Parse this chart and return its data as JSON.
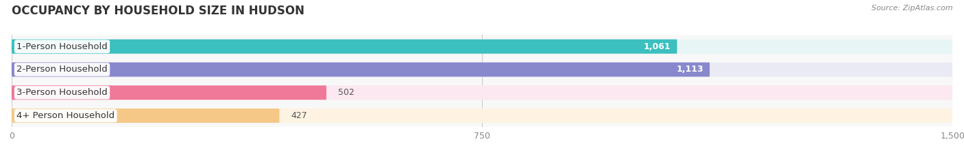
{
  "title": "OCCUPANCY BY HOUSEHOLD SIZE IN HUDSON",
  "source": "Source: ZipAtlas.com",
  "categories": [
    "1-Person Household",
    "2-Person Household",
    "3-Person Household",
    "4+ Person Household"
  ],
  "values": [
    1061,
    1113,
    502,
    427
  ],
  "bar_colors": [
    "#3bbfbf",
    "#8888cc",
    "#f07898",
    "#f5c888"
  ],
  "bar_bg_colors": [
    "#e8f5f5",
    "#eaeaf5",
    "#fce8f0",
    "#fef3e2"
  ],
  "value_inside": [
    true,
    true,
    false,
    false
  ],
  "xlim": [
    0,
    1500
  ],
  "xtick_values": [
    0,
    750,
    1500
  ],
  "xtick_labels": [
    "0",
    "750",
    "1,500"
  ],
  "bar_height": 0.62,
  "background_color": "#ffffff",
  "plot_bg_color": "#f8f8f8",
  "title_fontsize": 12,
  "label_fontsize": 9.5,
  "value_fontsize": 9
}
